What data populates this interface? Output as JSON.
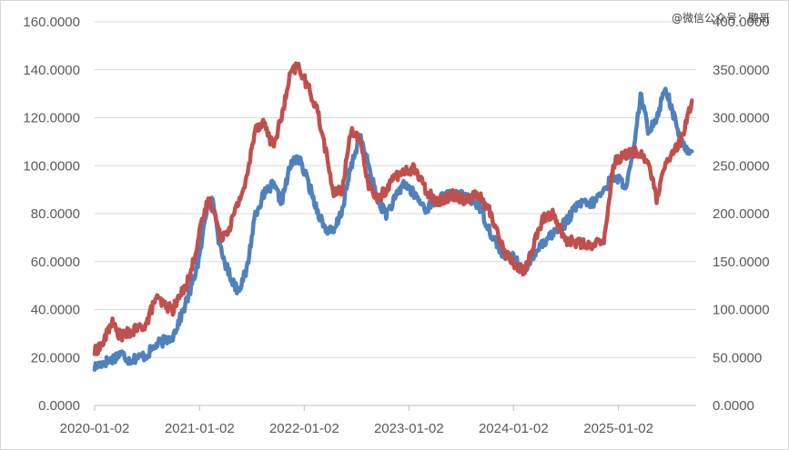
{
  "watermark": "@微信公众号：鹏哥",
  "chart_data": {
    "type": "line",
    "title": "",
    "xlabel": "",
    "ylabel": "",
    "x_ticks": [
      "2020-01-02",
      "2021-01-02",
      "2022-01-02",
      "2023-01-02",
      "2024-01-02",
      "2025-01-02"
    ],
    "x_range": [
      "2020-01-02",
      "2025-09-30"
    ],
    "y_left": {
      "ylim": [
        0,
        160
      ],
      "ticks": [
        "0.0000",
        "20.0000",
        "40.0000",
        "60.0000",
        "80.0000",
        "100.0000",
        "120.0000",
        "140.0000",
        "160.0000"
      ]
    },
    "y_right": {
      "ylim": [
        0,
        400
      ],
      "ticks": [
        "0.0000",
        "50.0000",
        "100.0000",
        "150.0000",
        "200.0000",
        "250.0000",
        "300.0000",
        "350.0000",
        "400.0000"
      ]
    },
    "grid": true,
    "legend": "none",
    "series": [
      {
        "axis": "left",
        "color": "#4f81bd",
        "points": [
          [
            "2020-01-02",
            16
          ],
          [
            "2020-02-01",
            18
          ],
          [
            "2020-03-01",
            19
          ],
          [
            "2020-04-01",
            22
          ],
          [
            "2020-05-01",
            19
          ],
          [
            "2020-06-01",
            20
          ],
          [
            "2020-07-01",
            21
          ],
          [
            "2020-08-01",
            25
          ],
          [
            "2020-09-01",
            27
          ],
          [
            "2020-10-01",
            29
          ],
          [
            "2020-11-01",
            38
          ],
          [
            "2020-12-01",
            48
          ],
          [
            "2021-01-02",
            62
          ],
          [
            "2021-02-01",
            86
          ],
          [
            "2021-02-20",
            84
          ],
          [
            "2021-03-15",
            65
          ],
          [
            "2021-04-15",
            55
          ],
          [
            "2021-05-15",
            48
          ],
          [
            "2021-06-15",
            56
          ],
          [
            "2021-07-15",
            80
          ],
          [
            "2021-08-15",
            88
          ],
          [
            "2021-09-15",
            92
          ],
          [
            "2021-10-15",
            85
          ],
          [
            "2021-11-15",
            100
          ],
          [
            "2021-12-10",
            104
          ],
          [
            "2022-01-10",
            95
          ],
          [
            "2022-02-15",
            82
          ],
          [
            "2022-03-15",
            74
          ],
          [
            "2022-04-15",
            72
          ],
          [
            "2022-05-15",
            82
          ],
          [
            "2022-06-15",
            100
          ],
          [
            "2022-07-15",
            112
          ],
          [
            "2022-08-15",
            100
          ],
          [
            "2022-09-15",
            85
          ],
          [
            "2022-10-15",
            80
          ],
          [
            "2022-11-15",
            86
          ],
          [
            "2022-12-15",
            93
          ],
          [
            "2023-01-20",
            88
          ],
          [
            "2023-03-01",
            82
          ],
          [
            "2023-04-15",
            86
          ],
          [
            "2023-06-01",
            88
          ],
          [
            "2023-07-15",
            87
          ],
          [
            "2023-09-01",
            84
          ],
          [
            "2023-10-15",
            72
          ],
          [
            "2023-12-01",
            62
          ],
          [
            "2024-01-02",
            62
          ],
          [
            "2024-02-10",
            54
          ],
          [
            "2024-03-15",
            64
          ],
          [
            "2024-04-15",
            68
          ],
          [
            "2024-05-20",
            72
          ],
          [
            "2024-07-01",
            76
          ],
          [
            "2024-08-15",
            84
          ],
          [
            "2024-10-01",
            84
          ],
          [
            "2024-11-15",
            90
          ],
          [
            "2024-12-15",
            96
          ],
          [
            "2025-01-02",
            94
          ],
          [
            "2025-02-01",
            92
          ],
          [
            "2025-03-01",
            110
          ],
          [
            "2025-03-20",
            130
          ],
          [
            "2025-04-15",
            115
          ],
          [
            "2025-05-15",
            120
          ],
          [
            "2025-06-15",
            133
          ],
          [
            "2025-07-15",
            120
          ],
          [
            "2025-08-15",
            108
          ],
          [
            "2025-09-15",
            106
          ]
        ]
      },
      {
        "axis": "right",
        "color": "#c0504d",
        "points": [
          [
            "2020-01-02",
            56
          ],
          [
            "2020-02-01",
            65
          ],
          [
            "2020-03-01",
            87
          ],
          [
            "2020-04-01",
            72
          ],
          [
            "2020-05-01",
            76
          ],
          [
            "2020-06-01",
            80
          ],
          [
            "2020-07-01",
            85
          ],
          [
            "2020-08-01",
            112
          ],
          [
            "2020-09-01",
            105
          ],
          [
            "2020-10-01",
            100
          ],
          [
            "2020-11-01",
            118
          ],
          [
            "2020-12-01",
            136
          ],
          [
            "2021-01-02",
            180
          ],
          [
            "2021-02-01",
            215
          ],
          [
            "2021-02-20",
            205
          ],
          [
            "2021-03-15",
            175
          ],
          [
            "2021-04-15",
            185
          ],
          [
            "2021-05-15",
            210
          ],
          [
            "2021-06-15",
            235
          ],
          [
            "2021-07-15",
            290
          ],
          [
            "2021-08-15",
            295
          ],
          [
            "2021-09-15",
            270
          ],
          [
            "2021-10-15",
            300
          ],
          [
            "2021-11-15",
            345
          ],
          [
            "2021-12-10",
            355
          ],
          [
            "2022-01-10",
            335
          ],
          [
            "2022-02-15",
            310
          ],
          [
            "2022-03-15",
            270
          ],
          [
            "2022-04-15",
            220
          ],
          [
            "2022-05-15",
            225
          ],
          [
            "2022-06-15",
            290
          ],
          [
            "2022-07-15",
            275
          ],
          [
            "2022-08-15",
            230
          ],
          [
            "2022-09-15",
            215
          ],
          [
            "2022-10-15",
            225
          ],
          [
            "2022-11-15",
            240
          ],
          [
            "2022-12-15",
            242
          ],
          [
            "2023-01-20",
            248
          ],
          [
            "2023-03-01",
            225
          ],
          [
            "2023-04-15",
            212
          ],
          [
            "2023-06-01",
            220
          ],
          [
            "2023-07-15",
            215
          ],
          [
            "2023-09-01",
            220
          ],
          [
            "2023-10-15",
            200
          ],
          [
            "2023-12-01",
            160
          ],
          [
            "2024-01-02",
            148
          ],
          [
            "2024-02-10",
            140
          ],
          [
            "2024-03-15",
            170
          ],
          [
            "2024-04-15",
            195
          ],
          [
            "2024-05-20",
            200
          ],
          [
            "2024-07-01",
            172
          ],
          [
            "2024-08-15",
            170
          ],
          [
            "2024-10-01",
            165
          ],
          [
            "2024-11-15",
            175
          ],
          [
            "2024-12-15",
            252
          ],
          [
            "2025-01-02",
            258
          ],
          [
            "2025-02-01",
            262
          ],
          [
            "2025-03-01",
            265
          ],
          [
            "2025-03-20",
            262
          ],
          [
            "2025-04-15",
            255
          ],
          [
            "2025-05-15",
            215
          ],
          [
            "2025-06-15",
            250
          ],
          [
            "2025-07-15",
            265
          ],
          [
            "2025-08-15",
            280
          ],
          [
            "2025-09-15",
            318
          ]
        ]
      }
    ]
  }
}
